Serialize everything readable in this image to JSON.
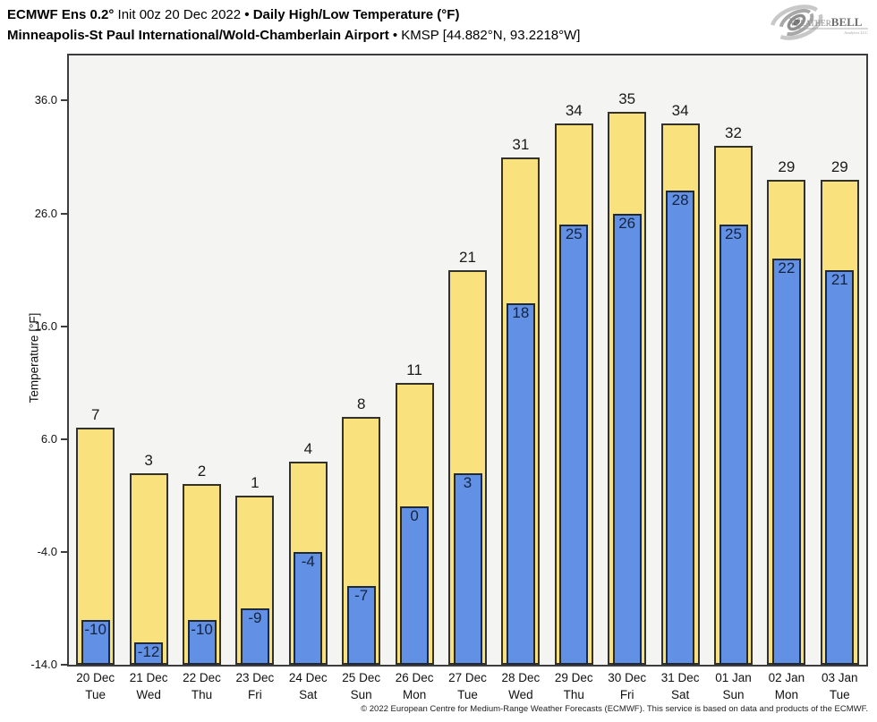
{
  "header": {
    "title_bold_1": "ECMWF Ens 0.2°",
    "title_regular_1": " Init 00z 20 Dec 2022 ",
    "title_bold_2": "• Daily High/Low Temperature (°F)",
    "line2_bold": "Minneapolis-St Paul International/Wold-Chamberlain Airport ",
    "line2_regular": "• KMSP [44.882°N, 93.2218°W]"
  },
  "logo": {
    "brand_w": "W",
    "brand_eather": "EATHER",
    "brand_bell": "BELL",
    "brand_sub": "Analytics LLC"
  },
  "chart_data": {
    "type": "bar",
    "title": "ECMWF Ens 0.2° Init 00z 20 Dec 2022 • Daily High/Low Temperature (°F)",
    "subtitle": "Minneapolis-St Paul International/Wold-Chamberlain Airport • KMSP [44.882°N, 93.2218°W]",
    "categories": [
      {
        "date": "20 Dec",
        "day": "Tue"
      },
      {
        "date": "21 Dec",
        "day": "Wed"
      },
      {
        "date": "22 Dec",
        "day": "Thu"
      },
      {
        "date": "23 Dec",
        "day": "Fri"
      },
      {
        "date": "24 Dec",
        "day": "Sat"
      },
      {
        "date": "25 Dec",
        "day": "Sun"
      },
      {
        "date": "26 Dec",
        "day": "Mon"
      },
      {
        "date": "27 Dec",
        "day": "Tue"
      },
      {
        "date": "28 Dec",
        "day": "Wed"
      },
      {
        "date": "29 Dec",
        "day": "Thu"
      },
      {
        "date": "30 Dec",
        "day": "Fri"
      },
      {
        "date": "31 Dec",
        "day": "Sat"
      },
      {
        "date": "01 Jan",
        "day": "Sun"
      },
      {
        "date": "02 Jan",
        "day": "Mon"
      },
      {
        "date": "03 Jan",
        "day": "Tue"
      }
    ],
    "series": [
      {
        "name": "Daily High",
        "color": "#F9E17E",
        "values": [
          7,
          3,
          2,
          1,
          4,
          8,
          11,
          21,
          31,
          34,
          35,
          34,
          32,
          29,
          29
        ]
      },
      {
        "name": "Daily Low",
        "color": "#6190E4",
        "values": [
          -10,
          -12,
          -10,
          -9,
          -4,
          -7,
          0,
          3,
          18,
          25,
          26,
          28,
          25,
          22,
          21
        ]
      }
    ],
    "xlabel": "",
    "ylabel": "Temperature [°F]",
    "yticks": [
      "36.0",
      "26.0",
      "16.0",
      "6.0",
      "-4.0",
      "-14.0"
    ],
    "ylim": [
      -14,
      40
    ],
    "grid": false,
    "legend_position": "none"
  },
  "footer": {
    "copyright": "© 2022 European Centre for Medium-Range Weather Forecasts (ECMWF). This service is based on data and products of the ECMWF."
  },
  "colors": {
    "high_bar": "#F9E17E",
    "low_bar": "#6190E4",
    "plot_bg": "#F4F4F2",
    "axis": "#3D3D3D",
    "high_label": "#1A1A1A",
    "low_label": "#14233F"
  }
}
